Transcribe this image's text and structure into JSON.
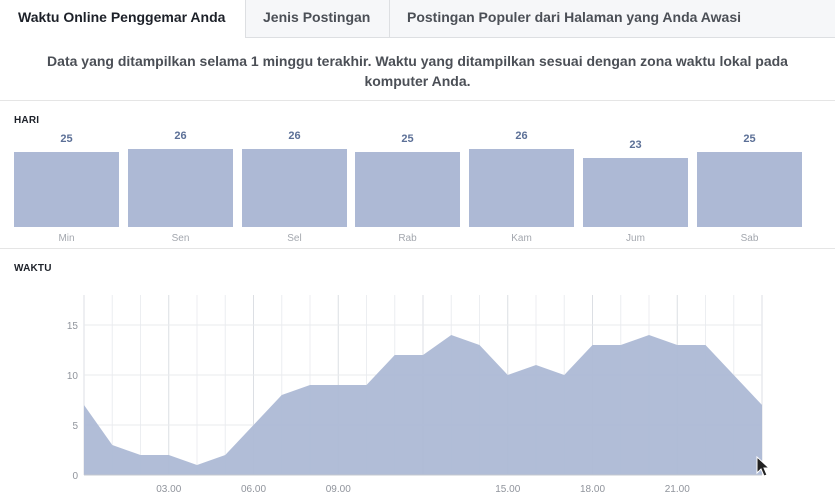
{
  "tabs": [
    {
      "label": "Waktu Online Penggemar Anda",
      "active": true
    },
    {
      "label": "Jenis Postingan",
      "active": false
    },
    {
      "label": "Postingan Populer dari Halaman yang Anda Awasi",
      "active": false
    }
  ],
  "notice": "Data yang ditampilkan selama 1 minggu terakhir. Waktu yang ditampilkan sesuai dengan zona waktu lokal pada komputer Anda.",
  "colors": {
    "bar_fill": "#adb9d5",
    "value_text": "#5c7097",
    "area_fill": "#adb9d5",
    "grid": "#e9ebee"
  },
  "chart_data": [
    {
      "type": "bar",
      "title": "HARI",
      "categories": [
        "Min",
        "Sen",
        "Sel",
        "Rab",
        "Kam",
        "Jum",
        "Sab"
      ],
      "values": [
        25,
        26,
        26,
        25,
        26,
        23,
        25
      ],
      "data_labels": [
        "25",
        "26",
        "26",
        "25",
        "26",
        "23",
        "25"
      ]
    },
    {
      "type": "area",
      "title": "WAKTU",
      "x": [
        0,
        1,
        2,
        3,
        4,
        5,
        6,
        7,
        8,
        9,
        10,
        11,
        12,
        13,
        14,
        15,
        16,
        17,
        18,
        19,
        20,
        21,
        22,
        23,
        24
      ],
      "values": [
        7,
        3,
        2,
        2,
        1,
        2,
        5,
        8,
        9,
        9,
        9,
        12,
        12,
        14,
        13,
        10,
        11,
        10,
        13,
        13,
        14,
        13,
        13,
        10,
        7
      ],
      "x_tick_labels": [
        "03.00",
        "06.00",
        "09.00",
        "15.00",
        "18.00",
        "21.00"
      ],
      "x_tick_positions": [
        3,
        6,
        9,
        15,
        18,
        21
      ],
      "y_tick_labels": [
        "0",
        "5",
        "10",
        "15"
      ],
      "ylim": [
        0,
        15
      ],
      "grid": true
    }
  ]
}
